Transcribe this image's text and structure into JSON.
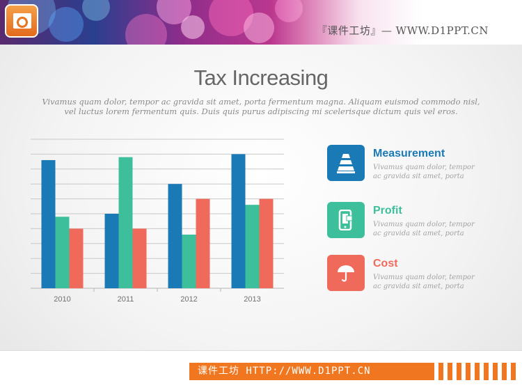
{
  "header": {
    "brand_text": "『课件工坊』— WWW.D1PPT.CN",
    "logo_icon": "presentation-icon"
  },
  "title": "Tax Increasing",
  "subtitle_line1": "Vivamus quam dolor, tempor ac gravida sit amet, porta fermentum magna. Aliquam euismod commodo nisl,",
  "subtitle_line2": "vel luctus lorem fermentum quis. Duis quis purus adipiscing mi scelerisque dictum quis vel eros.",
  "legend": [
    {
      "name": "Measurement",
      "desc_line1": "Vivamus quam dolor, tempor",
      "desc_line2": "ac gravida sit amet, porta",
      "color": "#1a7ab6",
      "icon": "traffic-cone-icon"
    },
    {
      "name": "Profit",
      "desc_line1": "Vivamus quam dolor, tempor",
      "desc_line2": "ac gravida sit amet, porta",
      "color": "#3dbf9b",
      "icon": "mobile-phone-icon"
    },
    {
      "name": "Cost",
      "desc_line1": "Vivamus quam dolor, tempor",
      "desc_line2": "ac gravida sit amet, porta",
      "color": "#ef6a5a",
      "icon": "umbrella-icon"
    }
  ],
  "chart_data": {
    "type": "bar",
    "categories": [
      "2010",
      "2011",
      "2012",
      "2013"
    ],
    "series": [
      {
        "name": "Measurement",
        "color": "#1a7ab6",
        "values": [
          8.6,
          5.0,
          7.0,
          9.0
        ]
      },
      {
        "name": "Profit",
        "color": "#3dbf9b",
        "values": [
          4.8,
          8.8,
          3.6,
          5.6
        ]
      },
      {
        "name": "Cost",
        "color": "#ef6a5a",
        "values": [
          4.0,
          4.0,
          6.0,
          6.0
        ]
      }
    ],
    "ylim": [
      0,
      10
    ],
    "grid": true,
    "y_tick_labels_shown": false
  },
  "footer": {
    "text": "课件工坊 HTTP://WWW.D1PPT.CN",
    "icon": "pencil-icon"
  }
}
